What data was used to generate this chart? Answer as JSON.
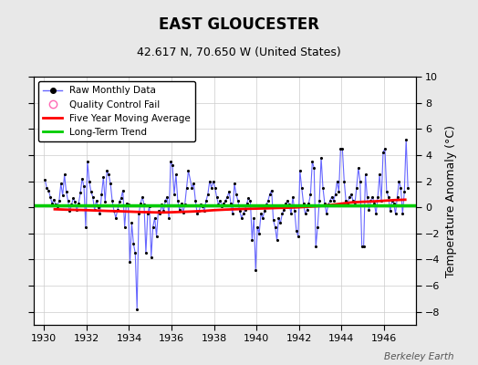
{
  "title": "EAST GLOUCESTER",
  "subtitle": "42.617 N, 70.650 W (United States)",
  "ylabel": "Temperature Anomaly (°C)",
  "watermark": "Berkeley Earth",
  "xlim": [
    1929.5,
    1947.5
  ],
  "ylim": [
    -9,
    10
  ],
  "yticks": [
    -8,
    -6,
    -4,
    -2,
    0,
    2,
    4,
    6,
    8,
    10
  ],
  "xticks": [
    1930,
    1932,
    1934,
    1936,
    1938,
    1940,
    1942,
    1944,
    1946
  ],
  "bg_color": "#e8e8e8",
  "plot_bg_color": "#ffffff",
  "raw_line_color": "#6666ff",
  "raw_dot_color": "#000000",
  "qc_color": "#ff69b4",
  "moving_avg_color": "#ff0000",
  "trend_color": "#00cc00",
  "raw_monthly": [
    1930.0417,
    2.1,
    1930.125,
    1.5,
    1930.2083,
    1.3,
    1930.2917,
    0.8,
    1930.375,
    0.3,
    1930.4583,
    0.6,
    1930.5417,
    0.2,
    1930.625,
    0.1,
    1930.7083,
    0.5,
    1930.7917,
    1.8,
    1930.875,
    0.9,
    1930.9583,
    2.5,
    1931.0417,
    1.2,
    1931.125,
    0.5,
    1931.2083,
    -0.3,
    1931.2917,
    0.2,
    1931.375,
    0.7,
    1931.4583,
    0.4,
    1931.5417,
    -0.2,
    1931.625,
    0.3,
    1931.7083,
    1.1,
    1931.7917,
    2.2,
    1931.875,
    1.6,
    1931.9583,
    -1.5,
    1932.0417,
    3.5,
    1932.125,
    2.0,
    1932.2083,
    1.2,
    1932.2917,
    0.8,
    1932.375,
    -0.2,
    1932.4583,
    0.5,
    1932.5417,
    0.0,
    1932.625,
    -0.5,
    1932.7083,
    1.0,
    1932.7917,
    2.3,
    1932.875,
    0.4,
    1932.9583,
    2.8,
    1933.0417,
    2.5,
    1933.125,
    1.8,
    1933.2083,
    0.5,
    1933.2917,
    -0.3,
    1933.375,
    -0.8,
    1933.4583,
    -0.2,
    1933.5417,
    0.4,
    1933.625,
    0.7,
    1933.7083,
    1.3,
    1933.7917,
    -1.5,
    1933.875,
    0.3,
    1933.9583,
    0.2,
    1934.0417,
    -4.2,
    1934.125,
    -1.2,
    1934.2083,
    -2.8,
    1934.2917,
    -3.5,
    1934.375,
    -7.8,
    1934.4583,
    -0.5,
    1934.5417,
    0.3,
    1934.625,
    0.8,
    1934.7083,
    0.2,
    1934.7917,
    -3.5,
    1934.875,
    -0.5,
    1934.9583,
    0.1,
    1935.0417,
    -3.8,
    1935.125,
    -1.5,
    1935.2083,
    -0.8,
    1935.2917,
    -2.2,
    1935.375,
    -0.3,
    1935.4583,
    -0.5,
    1935.5417,
    0.2,
    1935.625,
    -0.3,
    1935.7083,
    0.5,
    1935.7917,
    0.8,
    1935.875,
    -0.8,
    1935.9583,
    3.5,
    1936.0417,
    3.2,
    1936.125,
    1.0,
    1936.2083,
    2.5,
    1936.2917,
    0.5,
    1936.375,
    -0.2,
    1936.4583,
    0.3,
    1936.5417,
    -0.4,
    1936.625,
    0.2,
    1936.7083,
    1.5,
    1936.7917,
    2.8,
    1936.9583,
    1.5,
    1937.0417,
    1.8,
    1937.125,
    0.5,
    1937.2083,
    -0.5,
    1937.2917,
    -0.3,
    1937.375,
    0.2,
    1937.4583,
    0.1,
    1937.5417,
    -0.3,
    1937.625,
    0.5,
    1937.7083,
    1.0,
    1937.7917,
    2.0,
    1937.875,
    1.5,
    1937.9583,
    2.0,
    1938.0417,
    1.5,
    1938.125,
    0.8,
    1938.2083,
    0.2,
    1938.2917,
    0.5,
    1938.375,
    0.1,
    1938.4583,
    0.3,
    1938.5417,
    0.5,
    1938.625,
    0.8,
    1938.7083,
    1.2,
    1938.7917,
    0.3,
    1938.875,
    -0.5,
    1938.9583,
    1.8,
    1939.0417,
    1.0,
    1939.125,
    0.5,
    1939.2083,
    -0.3,
    1939.2917,
    -0.8,
    1939.375,
    -0.5,
    1939.4583,
    -0.2,
    1939.5417,
    0.3,
    1939.625,
    0.7,
    1939.7083,
    0.5,
    1939.7917,
    -2.5,
    1939.875,
    -0.8,
    1939.9583,
    -4.8,
    1940.0417,
    -1.5,
    1940.125,
    -2.0,
    1940.2083,
    -0.5,
    1940.2917,
    -0.8,
    1940.375,
    -0.3,
    1940.4583,
    0.2,
    1940.5417,
    0.5,
    1940.625,
    1.0,
    1940.7083,
    1.3,
    1940.7917,
    -1.0,
    1940.875,
    -1.5,
    1940.9583,
    -2.5,
    1941.0417,
    -0.8,
    1941.125,
    -1.2,
    1941.2083,
    -0.5,
    1941.2917,
    -0.2,
    1941.375,
    0.3,
    1941.4583,
    0.5,
    1941.5417,
    0.2,
    1941.625,
    -0.5,
    1941.7083,
    0.8,
    1941.7917,
    -0.3,
    1941.875,
    -1.8,
    1941.9583,
    -2.2,
    1942.0417,
    2.8,
    1942.125,
    1.5,
    1942.2083,
    0.3,
    1942.2917,
    -0.5,
    1942.375,
    -0.2,
    1942.4583,
    0.3,
    1942.5417,
    1.0,
    1942.625,
    3.5,
    1942.7083,
    3.0,
    1942.7917,
    -3.0,
    1942.875,
    -1.5,
    1942.9583,
    0.5,
    1943.0417,
    3.8,
    1943.125,
    1.5,
    1943.2083,
    0.3,
    1943.2917,
    -0.5,
    1943.375,
    0.2,
    1943.4583,
    0.5,
    1943.5417,
    0.8,
    1943.625,
    0.5,
    1943.7083,
    1.0,
    1943.7917,
    2.0,
    1943.875,
    1.2,
    1943.9583,
    4.5,
    1944.0417,
    4.5,
    1944.125,
    2.0,
    1944.2083,
    0.5,
    1944.2917,
    0.3,
    1944.375,
    0.8,
    1944.4583,
    1.0,
    1944.5417,
    0.5,
    1944.625,
    0.2,
    1944.7083,
    1.5,
    1944.7917,
    3.0,
    1944.875,
    2.0,
    1944.9583,
    -3.0,
    1945.0417,
    -3.0,
    1945.125,
    2.5,
    1945.2083,
    0.8,
    1945.2917,
    -0.2,
    1945.375,
    0.5,
    1945.4583,
    0.8,
    1945.5417,
    0.3,
    1945.625,
    -0.5,
    1945.7083,
    0.8,
    1945.7917,
    2.5,
    1945.875,
    0.5,
    1945.9583,
    4.2,
    1946.0417,
    4.5,
    1946.125,
    1.2,
    1946.2083,
    0.8,
    1946.2917,
    -0.3,
    1946.375,
    0.5,
    1946.4583,
    0.3,
    1946.5417,
    -0.5,
    1946.625,
    0.8,
    1946.7083,
    2.0,
    1946.7917,
    1.5,
    1946.875,
    -0.5,
    1946.9583,
    1.2,
    1947.0417,
    5.2,
    1947.125,
    1.5
  ],
  "five_year_avg": [
    [
      1930.5,
      -0.15
    ],
    [
      1931.0,
      -0.18
    ],
    [
      1931.5,
      -0.2
    ],
    [
      1932.0,
      -0.22
    ],
    [
      1932.5,
      -0.25
    ],
    [
      1933.0,
      -0.28
    ],
    [
      1933.5,
      -0.3
    ],
    [
      1934.0,
      -0.33
    ],
    [
      1934.5,
      -0.36
    ],
    [
      1935.0,
      -0.38
    ],
    [
      1935.5,
      -0.4
    ],
    [
      1936.0,
      -0.38
    ],
    [
      1936.5,
      -0.35
    ],
    [
      1937.0,
      -0.32
    ],
    [
      1937.5,
      -0.28
    ],
    [
      1938.0,
      -0.22
    ],
    [
      1938.5,
      -0.18
    ],
    [
      1939.0,
      -0.15
    ],
    [
      1939.5,
      -0.12
    ],
    [
      1940.0,
      -0.1
    ],
    [
      1940.5,
      -0.08
    ],
    [
      1941.0,
      -0.05
    ],
    [
      1941.5,
      -0.03
    ],
    [
      1942.0,
      0.0
    ],
    [
      1942.5,
      0.05
    ],
    [
      1943.0,
      0.1
    ],
    [
      1943.5,
      0.18
    ],
    [
      1944.0,
      0.28
    ],
    [
      1944.5,
      0.38
    ],
    [
      1945.0,
      0.42
    ],
    [
      1945.5,
      0.45
    ],
    [
      1946.0,
      0.5
    ],
    [
      1946.5,
      0.55
    ],
    [
      1947.0,
      0.58
    ]
  ],
  "trend_y": 0.12,
  "title_fontsize": 12,
  "subtitle_fontsize": 9,
  "tick_fontsize": 8,
  "ylabel_fontsize": 9
}
